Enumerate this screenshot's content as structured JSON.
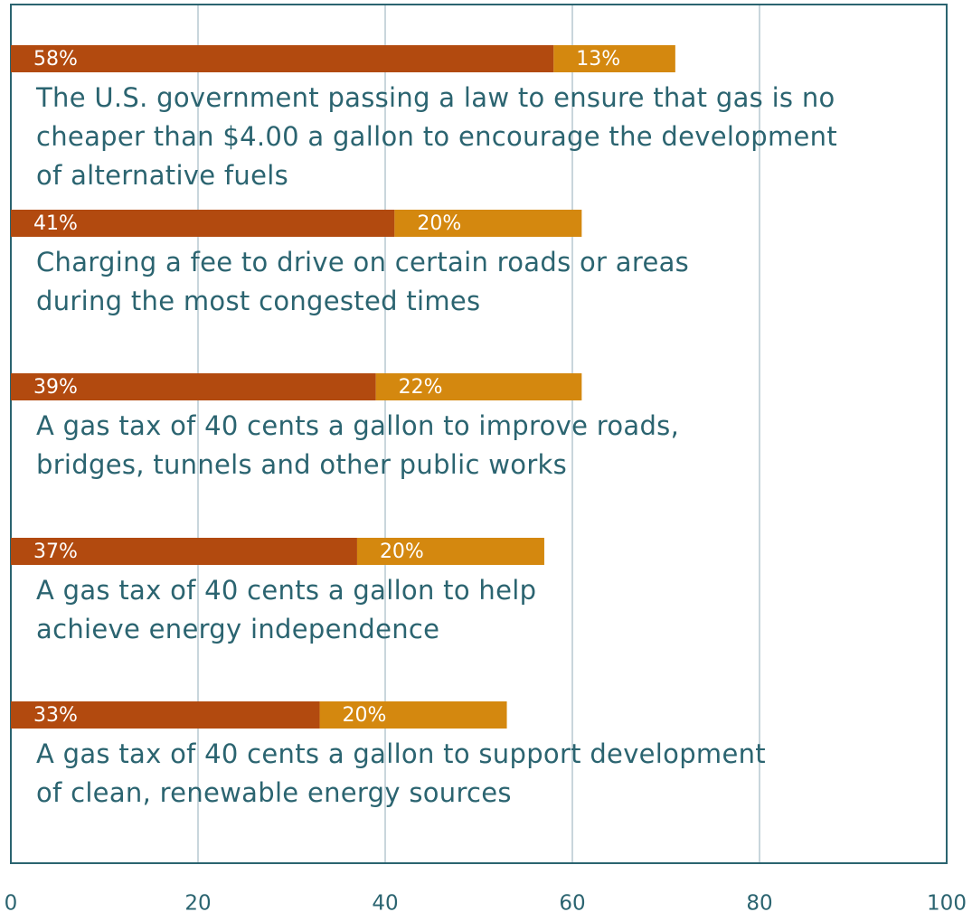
{
  "chart_data": {
    "type": "bar",
    "orientation": "horizontal",
    "stacked": true,
    "categories": [
      "The U.S. government passing a law to ensure that gas is no\ncheaper than $4.00 a gallon to encourage the development\nof alternative fuels",
      "Charging a fee to drive on certain roads or areas\nduring the most congested times",
      "A gas tax of 40 cents a gallon to improve roads,\nbridges, tunnels and other public works",
      "A gas tax of 40 cents a gallon to help\nachieve energy independence",
      "A gas tax of 40 cents a gallon to support development\nof clean, renewable energy sources"
    ],
    "series": [
      {
        "color": "#b24a0f",
        "values": [
          58,
          41,
          39,
          37,
          33
        ],
        "value_labels": [
          "58%",
          "41%",
          "39%",
          "37%",
          "33%"
        ]
      },
      {
        "color": "#d4880f",
        "values": [
          13,
          20,
          22,
          20,
          20
        ],
        "value_labels": [
          "13%",
          "20%",
          "22%",
          "20%",
          "20%"
        ]
      }
    ],
    "xlim": [
      0,
      100
    ],
    "xticks": [
      0,
      20,
      40,
      60,
      80,
      100
    ],
    "grid": true
  }
}
